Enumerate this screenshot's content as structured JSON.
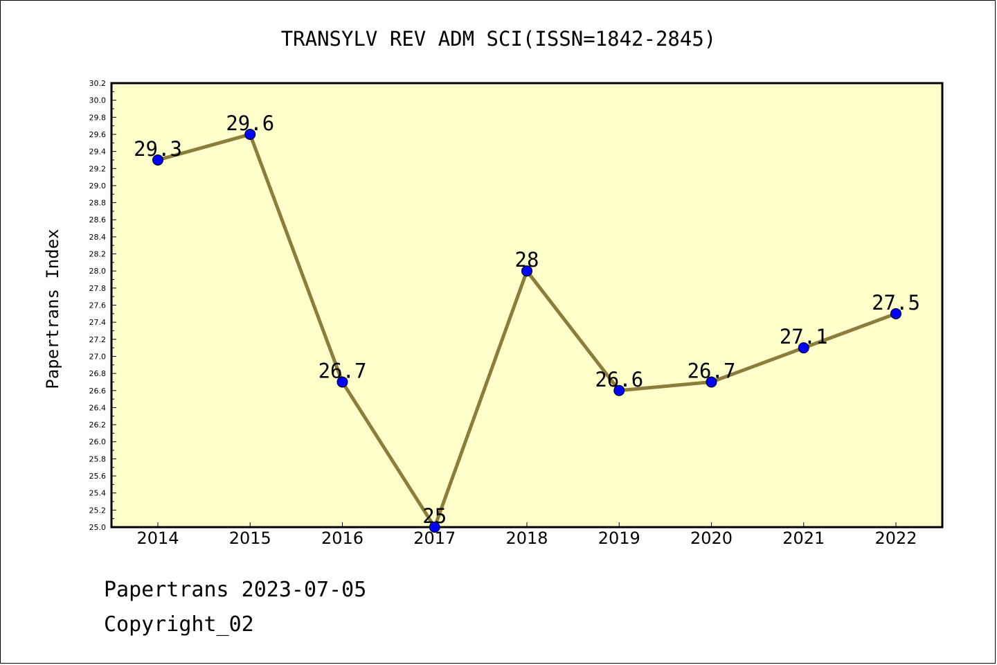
{
  "footer": {
    "line1": "Papertrans 2023-07-05",
    "line2": "Copyright_02"
  },
  "chart_data": {
    "type": "line",
    "title": "TRANSYLV REV ADM SCI(ISSN=1842-2845)",
    "xlabel": "",
    "ylabel": "Papertrans Index",
    "categories": [
      "2014",
      "2015",
      "2016",
      "2017",
      "2018",
      "2019",
      "2020",
      "2021",
      "2022"
    ],
    "series": [
      {
        "values": [
          29.3,
          29.6,
          26.7,
          25,
          28,
          26.6,
          26.7,
          27.1,
          27.5
        ],
        "labels": [
          "29.3",
          "29.6",
          "26.7",
          "25",
          "28",
          "26.6",
          "26.7",
          "27.1",
          "27.5"
        ]
      }
    ],
    "ylim": [
      25.0,
      30.2
    ],
    "yticks": [
      "25.0",
      "25.2",
      "25.4",
      "25.6",
      "25.8",
      "26.0",
      "26.2",
      "26.4",
      "26.6",
      "26.8",
      "27.0",
      "27.2",
      "27.4",
      "27.6",
      "27.8",
      "28.0",
      "28.2",
      "28.4",
      "28.6",
      "28.8",
      "29.0",
      "29.2",
      "29.4",
      "29.6",
      "29.8",
      "30.0",
      "30.2"
    ],
    "grid": false,
    "legend": "none",
    "colors": {
      "plot_background": "#ffffcc",
      "line": "#8b7d3a",
      "marker": "#0000ff"
    }
  }
}
